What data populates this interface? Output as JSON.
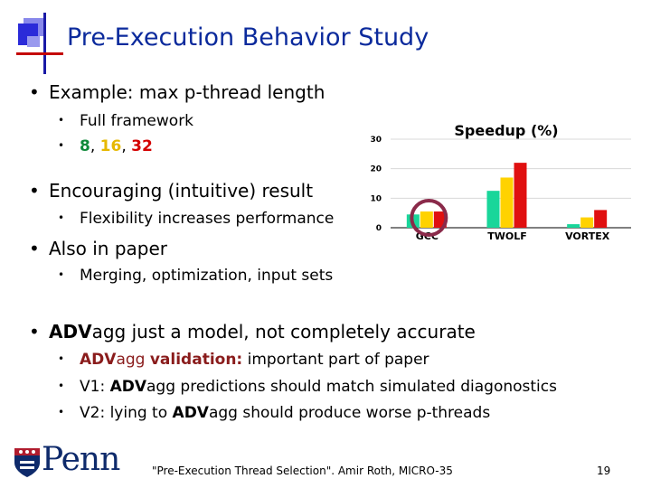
{
  "title": "Pre-Execution Behavior Study",
  "bullets": {
    "b1": "Example: max p-thread length",
    "b1_sub1": "Full framework",
    "b1_sub2_a": "8",
    "b1_sub2_sep1": ", ",
    "b1_sub2_b": "16",
    "b1_sub2_sep2": ", ",
    "b1_sub2_c": "32",
    "b2": "Encouraging (intuitive) result",
    "b2_sub1": "Flexibility increases performance",
    "b3": "Also in paper",
    "b3_sub1": "Merging, optimization, input sets",
    "b4_bold": "ADV",
    "b4_rest": "agg just a model, not completely accurate",
    "b4_sub1_bold": "ADV",
    "b4_sub1_mid": "agg ",
    "b4_sub1_bold2": "validation:",
    "b4_sub1_rest": " important part of paper",
    "b4_sub2_pre": "V1: ",
    "b4_sub2_bold": "ADV",
    "b4_sub2_rest": "agg predictions should match simulated diagonostics",
    "b4_sub3_pre": "V2: lying to ",
    "b4_sub3_bold": "ADV",
    "b4_sub3_rest": "agg should produce worse p-threads"
  },
  "footer": "\"Pre-Execution Thread Selection\".  Amir Roth, MICRO-35",
  "page_number": "19",
  "logo": "Penn",
  "colors": {
    "title": "#0b2a9c",
    "series_8": "#19d69a",
    "series_16": "#ffd200",
    "series_32": "#e01010",
    "highlight_circle": "#8a2a4a"
  },
  "chart_data": {
    "type": "bar",
    "title": "Speedup (%)",
    "categories": [
      "GCC",
      "TWOLF",
      "VORTEX"
    ],
    "series": [
      {
        "values": [
          4.5,
          12.5,
          1.2
        ]
      },
      {
        "values": [
          5.5,
          17,
          3.5
        ]
      },
      {
        "values": [
          5.5,
          22,
          6
        ]
      }
    ],
    "yticks": [
      "0",
      "10",
      "20",
      "30"
    ],
    "ylim": [
      0,
      30
    ],
    "highlight": "GCC"
  }
}
